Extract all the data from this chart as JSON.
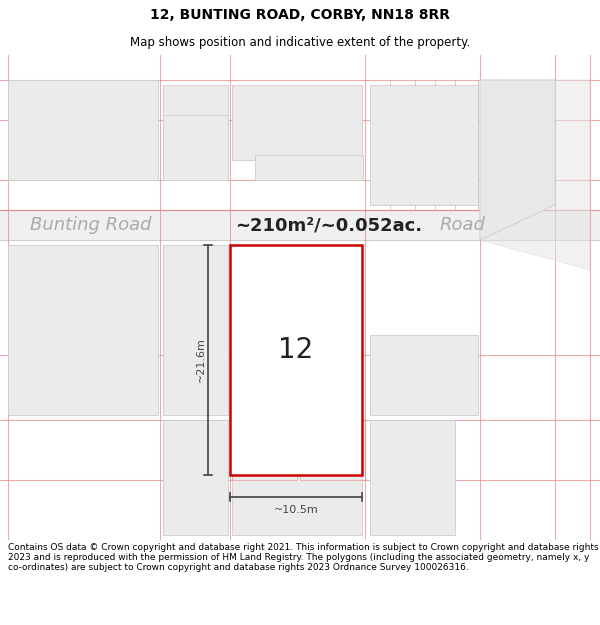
{
  "title": "12, BUNTING ROAD, CORBY, NN18 8RR",
  "subtitle": "Map shows position and indicative extent of the property.",
  "road_label_left": "Bunting Road",
  "road_label_right": "Road",
  "area_label": "~210m²/~0.052ac.",
  "property_number": "12",
  "dim_width": "~10.5m",
  "dim_height": "~21.6m",
  "footer": "Contains OS data © Crown copyright and database right 2021. This information is subject to Crown copyright and database rights 2023 and is reproduced with the permission of HM Land Registry. The polygons (including the associated geometry, namely x, y co-ordinates) are subject to Crown copyright and database rights 2023 Ordnance Survey 100026316.",
  "map_bg": "#f8f8f8",
  "block_fill": "#ebebeb",
  "block_edge": "#cccccc",
  "road_fill": "#f0f0f0",
  "property_fill": "#ffffff",
  "property_edge": "#cc0000",
  "cadastral_color": "#e88888",
  "dim_color": "#444444",
  "road_text_color": "#aaaaaa",
  "area_text_color": "#222222",
  "fig_width": 6.0,
  "fig_height": 6.25
}
